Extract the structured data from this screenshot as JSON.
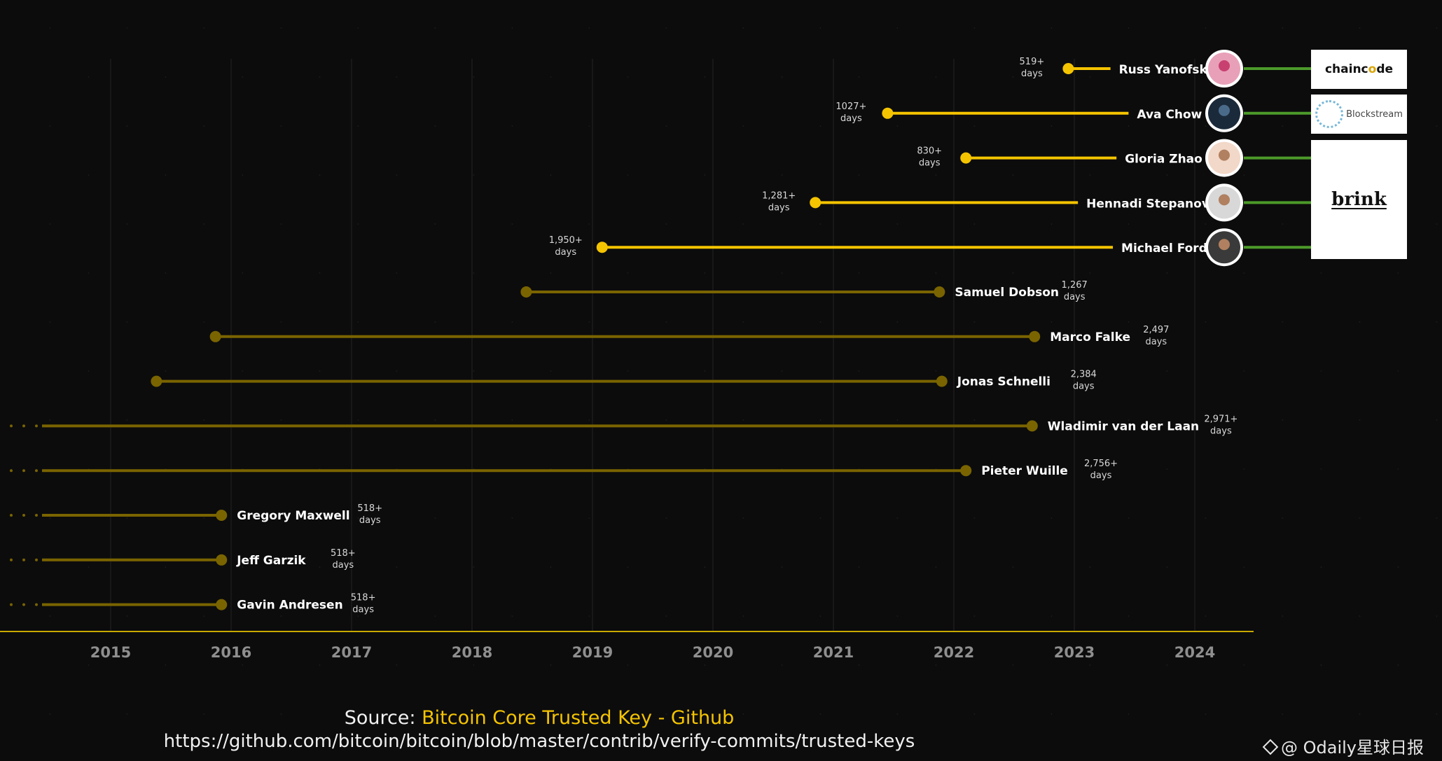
{
  "chart_data": {
    "type": "timeline",
    "title": "",
    "x_axis": {
      "min_year": 2014.5,
      "max_year": 2024.5,
      "tick_labels": [
        "2015",
        "2016",
        "2017",
        "2018",
        "2019",
        "2020",
        "2021",
        "2022",
        "2023",
        "2024"
      ]
    },
    "series": [
      {
        "name": "Russ Yanofsky",
        "start": 2022.95,
        "end": 2023.3,
        "duration": "519+",
        "unit": "days",
        "active": true,
        "org": "chaincode"
      },
      {
        "name": "Ava Chow",
        "start": 2021.45,
        "end": 2023.45,
        "duration": "1027+",
        "unit": "days",
        "active": true,
        "org": "blockstream"
      },
      {
        "name": "Gloria Zhao",
        "start": 2022.1,
        "end": 2023.35,
        "duration": "830+",
        "unit": "days",
        "active": true,
        "org": "brink"
      },
      {
        "name": "Hennadi Stepanov",
        "start": 2020.85,
        "end": 2023.03,
        "duration": "1,281+",
        "unit": "days",
        "active": true,
        "org": "brink"
      },
      {
        "name": "Michael Ford",
        "start": 2019.08,
        "end": 2023.32,
        "duration": "1,950+",
        "unit": "days",
        "active": true,
        "org": "brink"
      },
      {
        "name": "Samuel Dobson",
        "start": 2018.45,
        "end": 2021.88,
        "duration": "1,267",
        "unit": "days",
        "active": false
      },
      {
        "name": "Marco Falke",
        "start": 2015.87,
        "end": 2022.67,
        "duration": "2,497",
        "unit": "days",
        "active": false
      },
      {
        "name": "Jonas Schnelli",
        "start": 2015.38,
        "end": 2021.9,
        "duration": "2,384",
        "unit": "days",
        "active": false
      },
      {
        "name": "Wladimir van der Laan",
        "start": 2014.5,
        "end": 2022.65,
        "duration": "2,971+",
        "unit": "days",
        "active": false,
        "continues_left": true
      },
      {
        "name": "Pieter Wuille",
        "start": 2014.5,
        "end": 2022.1,
        "duration": "2,756+",
        "unit": "days",
        "active": false,
        "continues_left": true
      },
      {
        "name": "Gregory Maxwell",
        "start": 2014.5,
        "end": 2015.92,
        "duration": "518+",
        "unit": "days",
        "active": false,
        "continues_left": true
      },
      {
        "name": "Jeff Garzik",
        "start": 2014.5,
        "end": 2015.92,
        "duration": "518+",
        "unit": "days",
        "active": false,
        "continues_left": true
      },
      {
        "name": "Gavin Andresen",
        "start": 2014.5,
        "end": 2015.92,
        "duration": "518+",
        "unit": "days",
        "active": false,
        "continues_left": true
      }
    ],
    "colors": {
      "active": "#f5c400",
      "past": "#7a6400",
      "link": "#4c9a2a",
      "axis": "#c9a700",
      "tick": "#8f8f8f"
    }
  },
  "orgs": {
    "chaincode": {
      "text_a": "chainc",
      "text_o": "o",
      "text_b": "de"
    },
    "blockstream": "Blockstream",
    "brink": "brink"
  },
  "source": {
    "prefix": "Source: ",
    "name": "Bitcoin Core Trusted Key - Github",
    "url": "https://github.com/bitcoin/bitcoin/blob/master/contrib/verify-commits/trusted-keys"
  },
  "watermark": "@ Odaily星球日报"
}
